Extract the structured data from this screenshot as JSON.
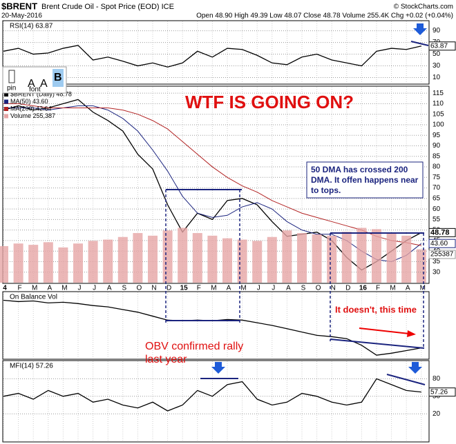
{
  "header": {
    "symbol": "$BRENT",
    "name": "Brent Crude Oil - Spot Price (EOD) ICE",
    "copyright": "© StockCharts.com",
    "date": "20-May-2016",
    "quote": "Open 48.90 High 49.39 Low 48.07 Close 48.78 Volume 255.4K Chg +0.02 (+0.04%)"
  },
  "toolbar": {
    "pin": "pin",
    "font": "font",
    "smaller": "A",
    "larger": "A",
    "bold": "B"
  },
  "annotations": {
    "headline": "WTF IS GOING ON?",
    "dma_note": [
      "50 DMA has crossed 200",
      "DMA. It offen happens near",
      "to tops."
    ],
    "this_time": "It doesn't, this time",
    "obv_note": [
      "OBV confirmed rally",
      "last year"
    ]
  },
  "chart_data": [
    {
      "type": "line",
      "title": "RSI(14) 63.87",
      "ylim": [
        0,
        106
      ],
      "yticks": [
        10,
        30,
        50,
        70,
        90
      ],
      "series": [
        {
          "name": "RSI(14)",
          "color": "#000000",
          "values": [
            55,
            60,
            50,
            52,
            60,
            65,
            40,
            45,
            38,
            30,
            35,
            28,
            35,
            55,
            45,
            60,
            58,
            48,
            35,
            32,
            45,
            50,
            40,
            35,
            30,
            55,
            60,
            58,
            63.87
          ]
        }
      ]
    },
    {
      "type": "line",
      "categories": [
        "4",
        "F",
        "M",
        "A",
        "M",
        "J",
        "J",
        "A",
        "S",
        "O",
        "N",
        "D",
        "15",
        "F",
        "M",
        "A",
        "M",
        "J",
        "J",
        "A",
        "S",
        "O",
        "N",
        "D",
        "16",
        "F",
        "M",
        "A",
        "M"
      ],
      "ylim": [
        25,
        118
      ],
      "yticks": [
        30,
        35,
        40,
        45,
        50,
        55,
        60,
        65,
        70,
        75,
        80,
        85,
        90,
        95,
        100,
        105,
        110,
        115
      ],
      "y2lim": [
        0,
        1500000
      ],
      "series": [
        {
          "name": "$BRENT (Daily) 48.78",
          "color": "#000000",
          "values": [
            107,
            109,
            107,
            108,
            110,
            112,
            106,
            102,
            97,
            86,
            79,
            62,
            49,
            58,
            55,
            64,
            65,
            62,
            54,
            47,
            48,
            49,
            45,
            37,
            31,
            35,
            40,
            45,
            48.78
          ]
        },
        {
          "name": "MA(50) 43.60",
          "color": "#1a237e",
          "values": [
            108,
            108,
            108,
            107,
            108,
            109,
            109,
            107,
            103,
            97,
            88,
            78,
            66,
            58,
            56,
            57,
            61,
            63,
            60,
            54,
            50,
            48,
            48,
            45,
            40,
            36,
            35,
            38,
            43.6
          ],
          "value_labels": [
            null,
            null,
            null,
            null,
            null,
            null,
            null,
            null,
            null,
            null,
            null,
            null,
            null,
            null,
            null,
            null,
            null,
            null,
            null,
            null,
            null,
            null,
            null,
            null,
            null,
            null,
            null,
            null,
            "43.60"
          ]
        },
        {
          "name": "MA(200) 42.64",
          "color": "#b22222",
          "values": [
            110,
            110,
            109,
            108,
            108,
            108,
            108,
            108,
            107,
            105,
            102,
            98,
            92,
            86,
            80,
            75,
            71,
            68,
            64,
            61,
            58,
            56,
            54,
            52,
            50,
            47,
            45,
            44,
            42.64
          ]
        },
        {
          "name": "Volume 255,387",
          "color": "#e6a5a5",
          "type": "bar",
          "axis": "y2",
          "values": [
            280000,
            300000,
            290000,
            310000,
            270000,
            300000,
            320000,
            330000,
            350000,
            380000,
            360000,
            400000,
            420000,
            380000,
            360000,
            340000,
            330000,
            320000,
            350000,
            400000,
            380000,
            370000,
            360000,
            390000,
            420000,
            410000,
            380000,
            360000,
            255387
          ]
        }
      ]
    },
    {
      "type": "line",
      "title": "On Balance Vol",
      "ylim": [
        0,
        100
      ],
      "series": [
        {
          "name": "On Balance Vol",
          "color": "#000000",
          "values": [
            88,
            86,
            87,
            84,
            85,
            83,
            80,
            78,
            74,
            70,
            64,
            58,
            57,
            58,
            57,
            59,
            58,
            54,
            50,
            45,
            40,
            35,
            33,
            30,
            20,
            5,
            8,
            12,
            16
          ]
        }
      ]
    },
    {
      "type": "line",
      "title": "MFI(14) 57.26",
      "ylim": [
        -27,
        110
      ],
      "yticks": [
        20,
        50,
        80
      ],
      "series": [
        {
          "name": "MFI(14)",
          "color": "#000000",
          "values": [
            50,
            55,
            45,
            60,
            50,
            55,
            40,
            45,
            35,
            30,
            40,
            25,
            35,
            60,
            50,
            70,
            75,
            45,
            35,
            40,
            55,
            50,
            40,
            35,
            40,
            80,
            70,
            60,
            57.26
          ]
        }
      ]
    }
  ]
}
